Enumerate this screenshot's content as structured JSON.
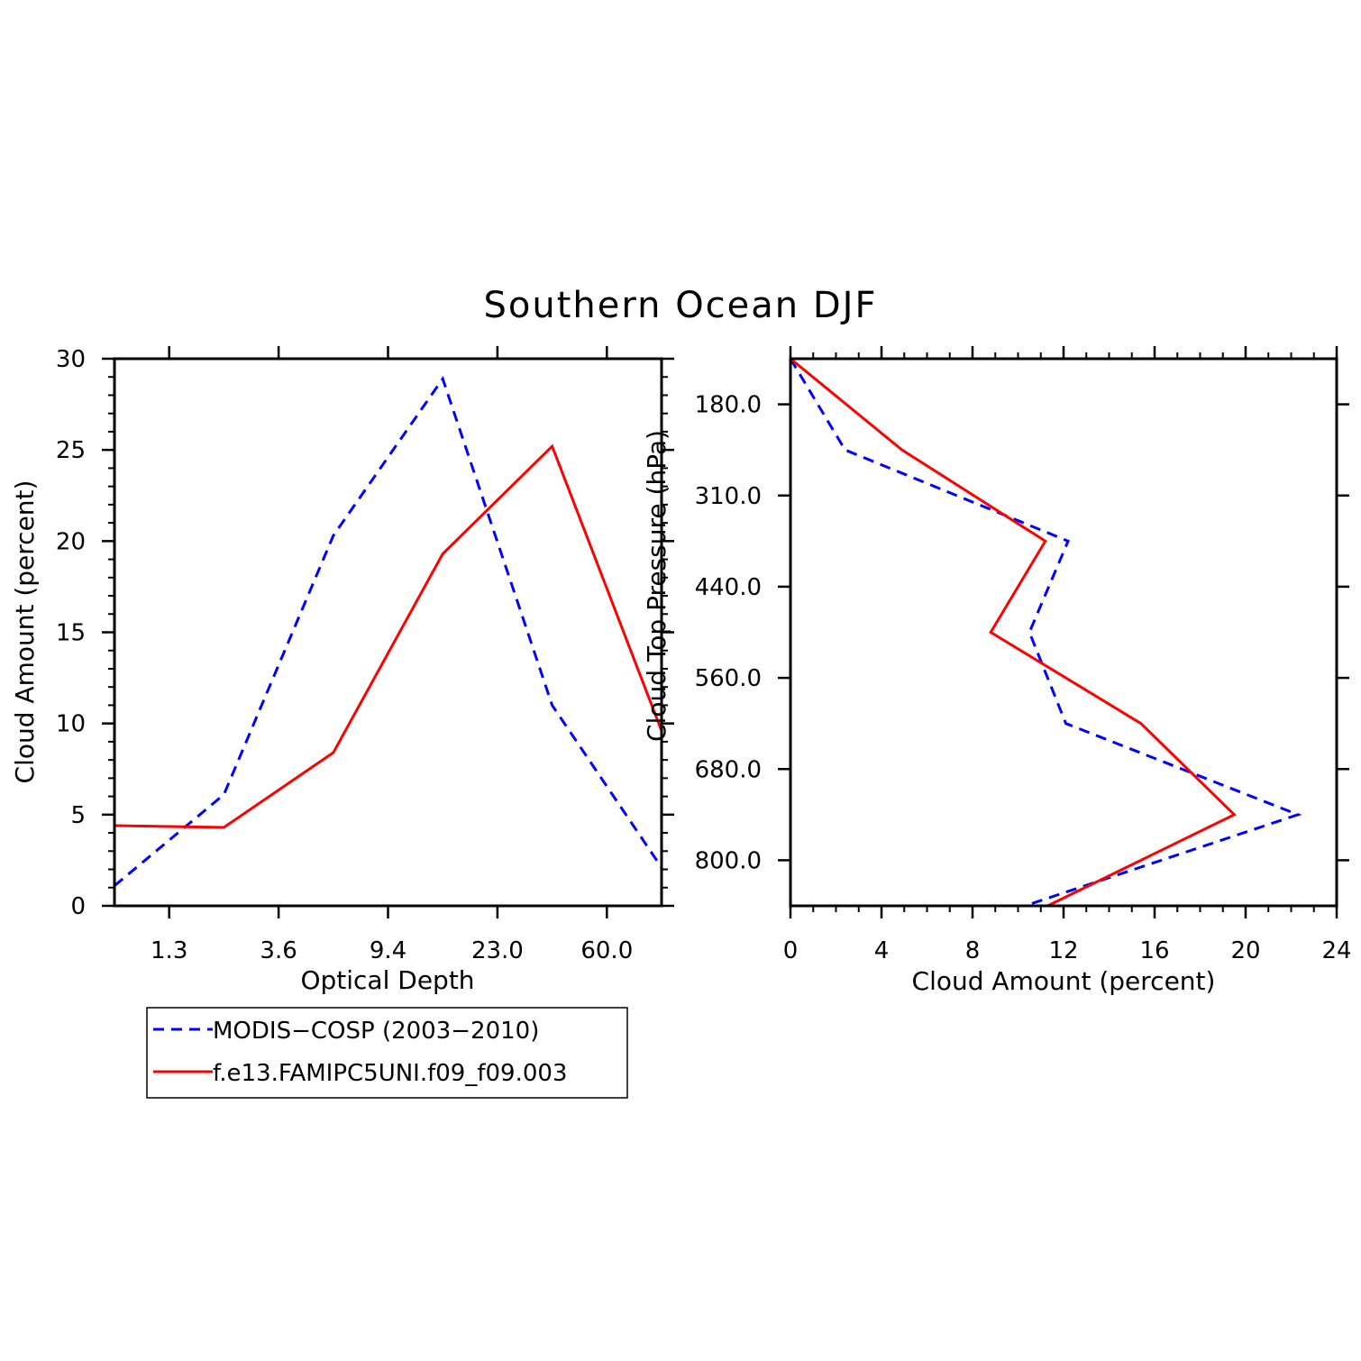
{
  "figure": {
    "title": "Southern Ocean DJF"
  },
  "colors": {
    "obs": "#0000ff",
    "model": "#ff0000",
    "axes": "#000000"
  },
  "legend": {
    "entries": [
      {
        "label": "MODIS−COSP (2003−2010)",
        "style": "dashed",
        "color": "#0000ff"
      },
      {
        "label": "f.e13.FAMIPC5UNI.f09_f09.003",
        "style": "solid",
        "color": "#ff0000"
      }
    ]
  },
  "chart_data": [
    {
      "type": "line",
      "xlabel": "Optical Depth",
      "ylabel": "Cloud Amount (percent)",
      "x_ticks": [
        "1.3",
        "3.6",
        "9.4",
        "23.0",
        "60.0"
      ],
      "y_ticks": [
        "0",
        "5",
        "10",
        "15",
        "20",
        "25",
        "30"
      ],
      "ylim": [
        0,
        30
      ],
      "x_bin_count": 7,
      "grid": false,
      "series": [
        {
          "name": "MODIS−COSP (2003−2010)",
          "style": "dashed",
          "color": "#0000ff",
          "values": [
            1.1,
            6.1,
            20.3,
            28.9,
            11.0,
            2.1
          ]
        },
        {
          "name": "f.e13.FAMIPC5UNI.f09_f09.003",
          "style": "solid",
          "color": "#ff0000",
          "values": [
            4.4,
            4.3,
            8.4,
            19.3,
            25.2,
            9.6
          ]
        }
      ],
      "x_positions": [
        0.0,
        1.0,
        2.0,
        3.0,
        4.0,
        5.0
      ],
      "x_positions_first_series_offset": 0
    },
    {
      "type": "line",
      "xlabel": "Cloud Amount (percent)",
      "ylabel": "Cloud Top Pressure (hPa)",
      "x_ticks": [
        "0",
        "4",
        "8",
        "12",
        "16",
        "20",
        "24"
      ],
      "y_ticks": [
        "180.0",
        "310.0",
        "440.0",
        "560.0",
        "680.0",
        "800.0"
      ],
      "xlim": [
        0,
        24
      ],
      "grid": false,
      "series": [
        {
          "name": "MODIS−COSP (2003−2010)",
          "style": "dashed",
          "color": "#0000ff",
          "values": [
            0.0,
            2.4,
            12.2,
            10.5,
            12.1,
            22.3,
            10.3
          ]
        },
        {
          "name": "f.e13.FAMIPC5UNI.f09_f09.003",
          "style": "solid",
          "color": "#ff0000",
          "values": [
            0.0,
            4.9,
            11.2,
            8.8,
            15.4,
            19.5,
            11.3
          ]
        }
      ]
    }
  ]
}
